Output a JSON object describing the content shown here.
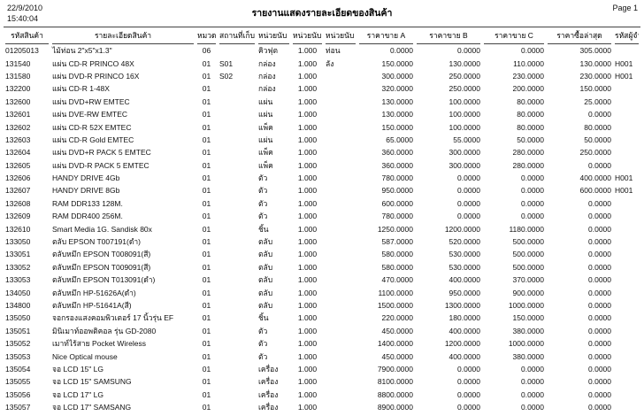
{
  "page": {
    "date": "22/9/2010",
    "time": "15:40:04",
    "title": "รายงานแสดงรายละเอียดของสินค้า",
    "page_label": "Page 1"
  },
  "table": {
    "columns": [
      "รหัสสินค้า",
      "รายละเอียดสินค้า",
      "หมวด",
      "สถานที่เก็บ",
      "หน่วยนับ 1",
      "หน่วยนับ 2",
      "หน่วยนับ 3",
      "ราคาขาย A",
      "ราคาขาย B",
      "ราคาขาย C",
      "ราคาซื้อล่าสุด",
      "รหัสผู้จำหน่าย"
    ],
    "rows": [
      [
        "01205013",
        "ไม้ท่อน 2\"x5\"x1.3\"",
        "06",
        "",
        "คิวฟุต",
        "1.000",
        "ท่อน",
        "0.0000",
        "0.0000",
        "0.0000",
        "305.0000",
        ""
      ],
      [
        "131540",
        "แผ่น CD-R PRINCO 48X",
        "01",
        "S01",
        "กล่อง",
        "1.000",
        "ลัง",
        "150.0000",
        "130.0000",
        "110.0000",
        "130.0000",
        "H001"
      ],
      [
        "131580",
        "แผ่น DVD-R PRINCO 16X",
        "01",
        "S02",
        "กล่อง",
        "1.000",
        "",
        "300.0000",
        "250.0000",
        "230.0000",
        "230.0000",
        "H001"
      ],
      [
        "132200",
        "แผ่น CD-R 1-48X",
        "01",
        "",
        "กล่อง",
        "1.000",
        "",
        "320.0000",
        "250.0000",
        "200.0000",
        "150.0000",
        ""
      ],
      [
        "132600",
        "แผ่น DVD+RW EMTEC",
        "01",
        "",
        "แผ่น",
        "1.000",
        "",
        "130.0000",
        "100.0000",
        "80.0000",
        "25.0000",
        ""
      ],
      [
        "132601",
        "แผ่น DVE-RW EMTEC",
        "01",
        "",
        "แผ่น",
        "1.000",
        "",
        "130.0000",
        "100.0000",
        "80.0000",
        "0.0000",
        ""
      ],
      [
        "132602",
        "แผ่น CD-R 52X EMTEC",
        "01",
        "",
        "แพ็ค",
        "1.000",
        "",
        "150.0000",
        "100.0000",
        "80.0000",
        "80.0000",
        ""
      ],
      [
        "132603",
        "แผ่น CD-R Gold EMTEC",
        "01",
        "",
        "แผ่น",
        "1.000",
        "",
        "65.0000",
        "55.0000",
        "50.0000",
        "50.0000",
        ""
      ],
      [
        "132604",
        "แผ่น DVD+R PACK 5 EMTEC",
        "01",
        "",
        "แพ็ค",
        "1.000",
        "",
        "360.0000",
        "300.0000",
        "280.0000",
        "250.0000",
        ""
      ],
      [
        "132605",
        "แผ่น DVD-R PACK 5 EMTEC",
        "01",
        "",
        "แพ็ค",
        "1.000",
        "",
        "360.0000",
        "300.0000",
        "280.0000",
        "0.0000",
        ""
      ],
      [
        "132606",
        "HANDY DRIVE 4Gb",
        "01",
        "",
        "ตัว",
        "1.000",
        "",
        "780.0000",
        "0.0000",
        "0.0000",
        "400.0000",
        "H001"
      ],
      [
        "132607",
        "HANDY DRIVE 8Gb",
        "01",
        "",
        "ตัว",
        "1.000",
        "",
        "950.0000",
        "0.0000",
        "0.0000",
        "600.0000",
        "H001"
      ],
      [
        "132608",
        "RAM  DDR133  128M.",
        "01",
        "",
        "ตัว",
        "1.000",
        "",
        "600.0000",
        "0.0000",
        "0.0000",
        "0.0000",
        ""
      ],
      [
        "132609",
        "RAM  DDR400 256M.",
        "01",
        "",
        "ตัว",
        "1.000",
        "",
        "780.0000",
        "0.0000",
        "0.0000",
        "0.0000",
        ""
      ],
      [
        "132610",
        "Smart Media 1G. Sandisk 80x",
        "01",
        "",
        "ชิ้น",
        "1.000",
        "",
        "1250.0000",
        "1200.0000",
        "1180.0000",
        "0.0000",
        ""
      ],
      [
        "133050",
        "ตลับ EPSON T007191(ดำ)",
        "01",
        "",
        "ตลับ",
        "1.000",
        "",
        "587.0000",
        "520.0000",
        "500.0000",
        "0.0000",
        ""
      ],
      [
        "133051",
        "ตลับหมึก EPSON T008091(สี)",
        "01",
        "",
        "ตลับ",
        "1.000",
        "",
        "580.0000",
        "530.0000",
        "500.0000",
        "0.0000",
        ""
      ],
      [
        "133052",
        "ตลับหมึก EPSON T009091(สี)",
        "01",
        "",
        "ตลับ",
        "1.000",
        "",
        "580.0000",
        "530.0000",
        "500.0000",
        "0.0000",
        ""
      ],
      [
        "133053",
        "ตลับหมึก EPSON T013091(ดำ)",
        "01",
        "",
        "ตลับ",
        "1.000",
        "",
        "470.0000",
        "400.0000",
        "370.0000",
        "0.0000",
        ""
      ],
      [
        "134050",
        "ตลับหมึก HP-51626A(ดำ)",
        "01",
        "",
        "ตลับ",
        "1.000",
        "",
        "1100.0000",
        "950.0000",
        "900.0000",
        "0.0000",
        ""
      ],
      [
        "134800",
        "ตลับหมึก HP-51641A(สี)",
        "01",
        "",
        "ตลับ",
        "1.000",
        "",
        "1500.0000",
        "1300.0000",
        "1000.0000",
        "0.0000",
        ""
      ],
      [
        "135050",
        "จอกรองแสงคอมพิวเตอร์ 17 นิ้วรุ่น EF",
        "01",
        "",
        "ชิ้น",
        "1.000",
        "",
        "220.0000",
        "180.0000",
        "150.0000",
        "0.0000",
        ""
      ],
      [
        "135051",
        "มินิเมาท์ออพติคอล รุ่น GD-2080",
        "01",
        "",
        "ตัว",
        "1.000",
        "",
        "450.0000",
        "400.0000",
        "380.0000",
        "0.0000",
        ""
      ],
      [
        "135052",
        "เมาท์ไร้สาย Pocket Wireless",
        "01",
        "",
        "ตัว",
        "1.000",
        "",
        "1400.0000",
        "1200.0000",
        "1000.0000",
        "0.0000",
        ""
      ],
      [
        "135053",
        "Nice Optical mouse",
        "01",
        "",
        "ตัว",
        "1.000",
        "",
        "450.0000",
        "400.0000",
        "380.0000",
        "0.0000",
        ""
      ],
      [
        "135054",
        "จอ LCD 15\" LG",
        "01",
        "",
        "เครื่อง",
        "1.000",
        "",
        "7900.0000",
        "0.0000",
        "0.0000",
        "0.0000",
        ""
      ],
      [
        "135055",
        "จอ LCD 15\" SAMSUNG",
        "01",
        "",
        "เครื่อง",
        "1.000",
        "",
        "8100.0000",
        "0.0000",
        "0.0000",
        "0.0000",
        ""
      ],
      [
        "135056",
        "จอ LCD  17\" LG",
        "01",
        "",
        "เครื่อง",
        "1.000",
        "",
        "8800.0000",
        "0.0000",
        "0.0000",
        "0.0000",
        ""
      ],
      [
        "135057",
        "จอ LCD 17\" SAMSANG",
        "01",
        "",
        "เครื่อง",
        "1.000",
        "",
        "8900.0000",
        "0.0000",
        "0.0000",
        "0.0000",
        ""
      ]
    ]
  }
}
